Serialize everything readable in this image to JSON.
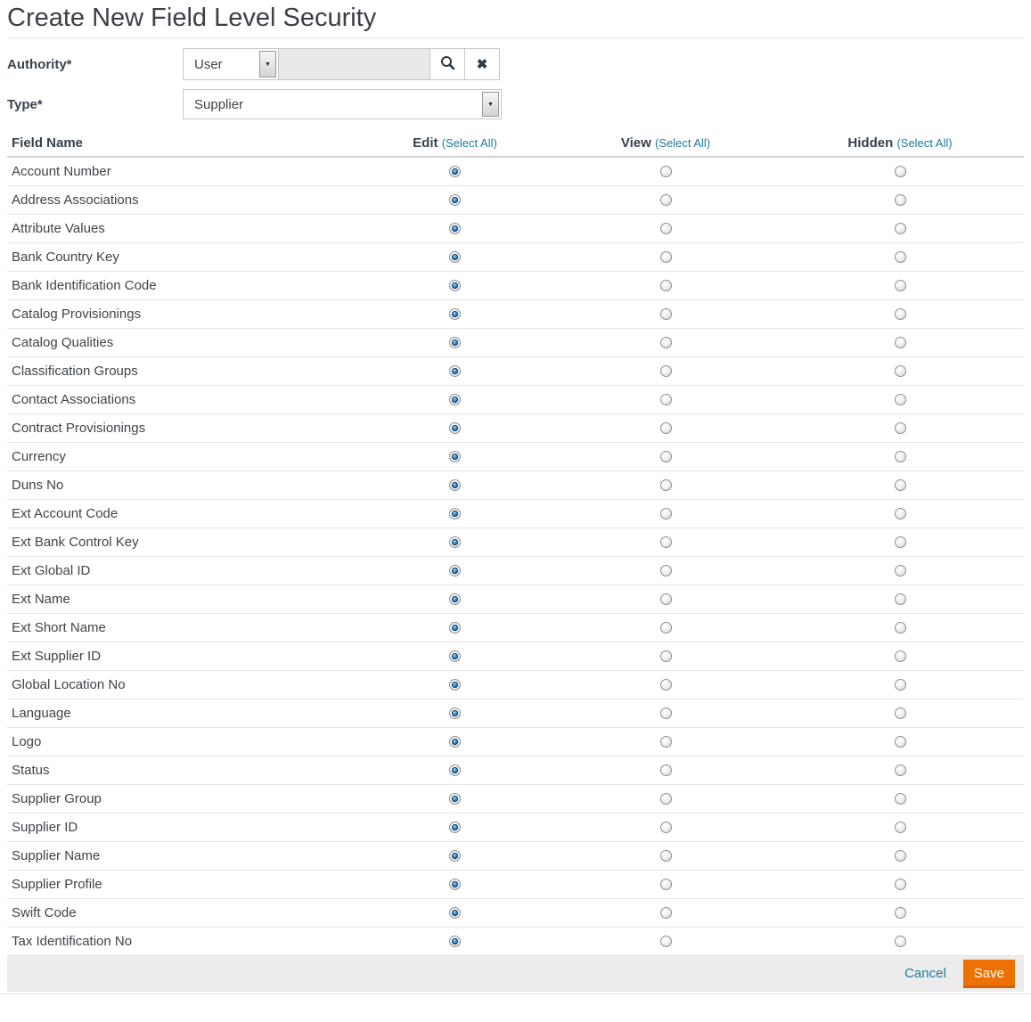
{
  "page": {
    "title": "Create New Field Level Security"
  },
  "form": {
    "authority": {
      "label": "Authority*",
      "select_value": "User",
      "input_value": "",
      "search_icon": "magnifier-icon",
      "clear_icon": "x-icon"
    },
    "type": {
      "label": "Type*",
      "select_value": "Supplier"
    }
  },
  "table": {
    "headers": {
      "field_name": "Field Name",
      "edit": "Edit",
      "view": "View",
      "hidden": "Hidden",
      "select_all": "(Select All)"
    },
    "selected_column": "edit",
    "rows": [
      "Account Number",
      "Address Associations",
      "Attribute Values",
      "Bank Country Key",
      "Bank Identification Code",
      "Catalog Provisionings",
      "Catalog Qualities",
      "Classification Groups",
      "Contact Associations",
      "Contract Provisionings",
      "Currency",
      "Duns No",
      "Ext Account Code",
      "Ext Bank Control Key",
      "Ext Global ID",
      "Ext Name",
      "Ext Short Name",
      "Ext Supplier ID",
      "Global Location No",
      "Language",
      "Logo",
      "Status",
      "Supplier Group",
      "Supplier ID",
      "Supplier Name",
      "Supplier Profile",
      "Swift Code",
      "Tax Identification No"
    ]
  },
  "footer": {
    "cancel_label": "Cancel",
    "save_label": "Save"
  },
  "colors": {
    "accent_teal": "#1d7a9e",
    "save_orange": "#ee7104",
    "footer_bg": "#ececec"
  }
}
